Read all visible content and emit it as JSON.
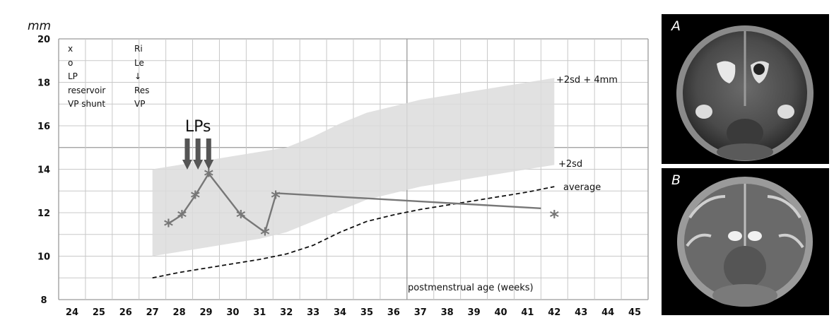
{
  "chart_data": {
    "type": "line",
    "yunit": "mm",
    "xlabel": "postmenstrual age (weeks)",
    "x_ticks": [
      "24",
      "25",
      "26",
      "27",
      "28",
      "29",
      "30",
      "31",
      "32",
      "33",
      "34",
      "35",
      "36",
      "37",
      "38",
      "39",
      "40",
      "41",
      "42",
      "43",
      "44",
      "45"
    ],
    "y_ticks": [
      "8",
      "10",
      "12",
      "14",
      "16",
      "18",
      "20"
    ],
    "ylim": [
      8,
      20
    ],
    "xlim": [
      23.5,
      45.5
    ],
    "grid": true,
    "legend": {
      "position": "top-left",
      "symbols": [
        "x",
        "o",
        "LP",
        "reservoir",
        "VP shunt"
      ],
      "meanings": [
        "Ri",
        "Le",
        "↓",
        "Res",
        "VP"
      ]
    },
    "band": {
      "upper_label": "+2sd + 4mm",
      "lower_label": "+2sd",
      "x": [
        27,
        28,
        29,
        30,
        31,
        32,
        33,
        34,
        35,
        36,
        37,
        38,
        39,
        40,
        41,
        42
      ],
      "upper": [
        14,
        14.2,
        14.4,
        14.6,
        14.8,
        15.0,
        15.5,
        16.1,
        16.6,
        16.9,
        17.2,
        17.4,
        17.6,
        17.8,
        18.0,
        18.2
      ],
      "lower": [
        10,
        10.2,
        10.4,
        10.6,
        10.8,
        11.1,
        11.6,
        12.1,
        12.6,
        12.9,
        13.2,
        13.4,
        13.6,
        13.8,
        14.0,
        14.2
      ]
    },
    "average": {
      "label": "average",
      "x": [
        27,
        28,
        29,
        30,
        31,
        32,
        33,
        34,
        35,
        36,
        37,
        38,
        39,
        40,
        41,
        42
      ],
      "y": [
        9.0,
        9.25,
        9.45,
        9.65,
        9.85,
        10.1,
        10.5,
        11.1,
        11.6,
        11.9,
        12.15,
        12.35,
        12.55,
        12.75,
        12.95,
        13.2
      ]
    },
    "series": [
      {
        "x": [
          27.6,
          28.1,
          28.6,
          29.1,
          30.3,
          31.2,
          31.6
        ],
        "y": [
          11.5,
          11.9,
          12.8,
          13.8,
          11.9,
          11.1,
          12.8
        ]
      },
      {
        "x": [
          31.6,
          41.5
        ],
        "y": [
          12.9,
          12.2
        ]
      }
    ],
    "extra_points": [
      {
        "x": 42.0,
        "y": 11.9
      }
    ],
    "lp_events": [
      28.3,
      28.7,
      29.1
    ],
    "lp_label": "LPs"
  },
  "panels": [
    {
      "letter": "A"
    },
    {
      "letter": "B"
    }
  ]
}
